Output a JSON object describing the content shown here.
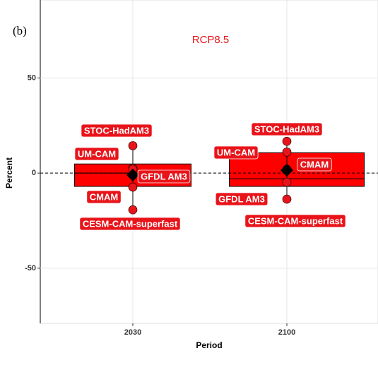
{
  "chart_data": {
    "type": "box",
    "panel_label": "(b)",
    "annotation": "RCP8.5",
    "x_label": "Period",
    "y_label": "Percent",
    "categories": [
      "2030",
      "2100"
    ],
    "q1": [
      -7,
      -7
    ],
    "median": [
      0,
      -3
    ],
    "q3": [
      4.8,
      10.7
    ],
    "mean": [
      -1,
      1.5
    ],
    "models": [
      {
        "name": "STOC-HadAM3",
        "values": [
          14.4,
          11.1
        ]
      },
      {
        "name": "UM-CAM",
        "values": [
          2.6,
          16.7
        ]
      },
      {
        "name": "GFDL AM3",
        "values": [
          2,
          -4.8
        ]
      },
      {
        "name": "CMAM",
        "values": [
          -7.4,
          2
        ]
      },
      {
        "name": "CESM-CAM-superfast",
        "values": [
          -19.3,
          -13.7
        ]
      }
    ],
    "hline": 0,
    "ylim": [
      -79,
      91
    ],
    "yticks": [
      -50,
      0,
      50
    ],
    "box_color": "#ff0000",
    "point_color": "#e8141a",
    "annotation_color": "#e8141a",
    "grid": true
  }
}
